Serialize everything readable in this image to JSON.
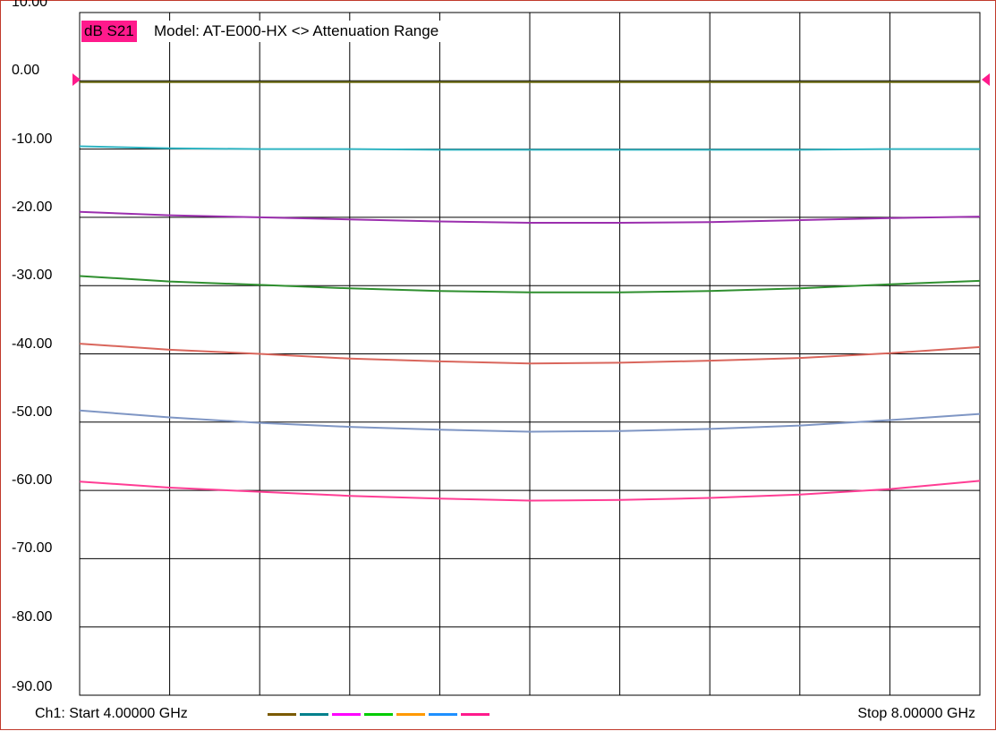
{
  "title": {
    "badge": "dB S21",
    "text": "Model: AT-E000-HX <> Attenuation Range"
  },
  "footer": {
    "start": "Ch1: Start  4.00000 GHz",
    "stop": "Stop  8.00000 GHz"
  },
  "legend_colors": [
    "#7a5a00",
    "#00808c",
    "#ff00ff",
    "#00cc00",
    "#ff9900",
    "#1e90ff",
    "#ff1a8c"
  ],
  "chart_data": {
    "type": "line",
    "title": "Model: AT-E000-HX <> Attenuation Range",
    "ylabel": "dB S21",
    "xlim": [
      4.0,
      8.0
    ],
    "ylim": [
      -90,
      10
    ],
    "yticks": [
      "10.00",
      "0.00",
      "-10.00",
      "-20.00",
      "-30.00",
      "-40.00",
      "-50.00",
      "-60.00",
      "-70.00",
      "-80.00",
      "-90.00"
    ],
    "ytick_values": [
      10,
      0,
      -10,
      -20,
      -30,
      -40,
      -50,
      -60,
      -70,
      -80,
      -90
    ],
    "x_divisions": 10,
    "grid": true,
    "x": [
      4.0,
      4.4,
      4.8,
      5.2,
      5.6,
      6.0,
      6.4,
      6.8,
      7.2,
      7.6,
      8.0
    ],
    "series": [
      {
        "color": "#6b6a10",
        "values": [
          -0.2,
          -0.2,
          -0.2,
          -0.2,
          -0.2,
          -0.2,
          -0.2,
          -0.2,
          -0.2,
          -0.2,
          -0.2
        ]
      },
      {
        "color": "#2fb4c2",
        "values": [
          -9.6,
          -9.9,
          -10.0,
          -10.0,
          -10.1,
          -10.1,
          -10.1,
          -10.1,
          -10.1,
          -10.0,
          -10.0
        ]
      },
      {
        "color": "#9b2fae",
        "values": [
          -19.2,
          -19.7,
          -20.0,
          -20.3,
          -20.6,
          -20.8,
          -20.8,
          -20.7,
          -20.4,
          -20.1,
          -19.9
        ]
      },
      {
        "color": "#2f8f2f",
        "values": [
          -28.6,
          -29.4,
          -29.9,
          -30.4,
          -30.8,
          -31.0,
          -31.0,
          -30.8,
          -30.4,
          -29.8,
          -29.3
        ]
      },
      {
        "color": "#d9665c",
        "values": [
          -38.5,
          -39.4,
          -40.0,
          -40.7,
          -41.1,
          -41.4,
          -41.3,
          -41.0,
          -40.6,
          -39.9,
          -39.0
        ]
      },
      {
        "color": "#7f96c4",
        "values": [
          -48.3,
          -49.3,
          -50.1,
          -50.7,
          -51.1,
          -51.4,
          -51.3,
          -51.0,
          -50.5,
          -49.7,
          -48.8
        ]
      },
      {
        "color": "#ff3d94",
        "values": [
          -58.7,
          -59.6,
          -60.2,
          -60.8,
          -61.2,
          -61.5,
          -61.4,
          -61.1,
          -60.6,
          -59.8,
          -58.6
        ]
      }
    ]
  }
}
